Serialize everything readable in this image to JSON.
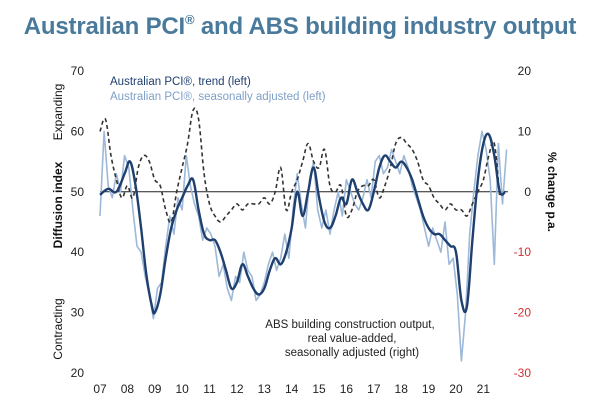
{
  "title": "Australian PCI",
  "title_mark": "®",
  "title_rest": " and ABS building industry output",
  "colors": {
    "title": "#4a7a9b",
    "trend": "#1f3f6e",
    "seasonal": "#9db8d8",
    "abs": "#333333",
    "right_negative": "#d42e2e",
    "zero_line": "#222222"
  },
  "chart_data": {
    "type": "line",
    "title": "Australian PCI® and ABS building industry output",
    "x_label_ticks": [
      "07",
      "08",
      "09",
      "10",
      "11",
      "12",
      "13",
      "14",
      "15",
      "16",
      "17",
      "18",
      "19",
      "20",
      "21"
    ],
    "xlim": [
      2007.0,
      2021.9
    ],
    "left_axis": {
      "label": "Diffusion index",
      "ylim": [
        20,
        70
      ],
      "ticks": [
        20,
        30,
        40,
        50,
        60,
        70
      ],
      "upper_note": "Expanding",
      "lower_note": "Contracting"
    },
    "right_axis": {
      "label": "% change p.a.",
      "ylim": [
        -30,
        20
      ],
      "ticks": [
        -30,
        -20,
        -10,
        0,
        10,
        20
      ]
    },
    "legend": {
      "trend": "Australian PCI®, trend (left)",
      "seasonal": "Australian PCI®, seasonally adjusted (left)"
    },
    "annotation": [
      "ABS building construction output,",
      "real value-added,",
      "seasonally adjusted (right)"
    ],
    "series": [
      {
        "name": "Australian PCI®, trend (left)",
        "axis": "left",
        "x": [
          2007.0,
          2007.3,
          2007.6,
          2007.9,
          2008.1,
          2008.3,
          2008.5,
          2008.7,
          2008.9,
          2009.0,
          2009.2,
          2009.4,
          2009.6,
          2009.8,
          2010.0,
          2010.2,
          2010.4,
          2010.6,
          2010.8,
          2011.0,
          2011.2,
          2011.4,
          2011.6,
          2011.8,
          2012.0,
          2012.2,
          2012.4,
          2012.6,
          2012.8,
          2013.0,
          2013.2,
          2013.4,
          2013.6,
          2013.8,
          2014.0,
          2014.2,
          2014.4,
          2014.6,
          2014.8,
          2015.0,
          2015.2,
          2015.4,
          2015.6,
          2015.8,
          2016.0,
          2016.2,
          2016.4,
          2016.6,
          2016.8,
          2017.0,
          2017.2,
          2017.4,
          2017.6,
          2017.8,
          2018.0,
          2018.2,
          2018.4,
          2018.6,
          2018.8,
          2019.0,
          2019.2,
          2019.4,
          2019.6,
          2019.8,
          2020.0,
          2020.2,
          2020.4,
          2020.6,
          2020.8,
          2021.0,
          2021.2,
          2021.4,
          2021.6,
          2021.8
        ],
        "values": [
          49.5,
          50.5,
          50,
          53,
          55,
          51,
          44,
          36,
          31,
          30,
          33,
          39,
          44,
          47,
          49,
          51,
          52,
          47,
          43,
          42,
          42,
          40,
          37,
          34,
          35,
          38,
          36,
          34,
          33,
          34,
          37,
          39,
          38,
          40,
          44,
          50,
          46,
          50,
          54,
          49,
          45,
          44,
          46,
          49,
          48,
          52,
          50,
          48,
          47,
          50,
          54,
          56,
          55,
          54,
          55,
          54,
          52,
          49,
          46,
          44,
          43,
          43,
          42,
          41,
          40,
          32,
          31,
          42,
          52,
          58,
          59.5,
          56,
          50,
          50
        ]
      },
      {
        "name": "Australian PCI®, seasonally adjusted (left)",
        "axis": "left",
        "x": [
          2007.0,
          2007.15,
          2007.3,
          2007.45,
          2007.6,
          2007.75,
          2007.9,
          2008.05,
          2008.2,
          2008.35,
          2008.5,
          2008.65,
          2008.8,
          2008.95,
          2009.1,
          2009.25,
          2009.4,
          2009.55,
          2009.7,
          2009.85,
          2010.0,
          2010.15,
          2010.3,
          2010.45,
          2010.6,
          2010.75,
          2010.9,
          2011.05,
          2011.2,
          2011.35,
          2011.5,
          2011.65,
          2011.8,
          2011.95,
          2012.1,
          2012.25,
          2012.4,
          2012.55,
          2012.7,
          2012.85,
          2013.0,
          2013.15,
          2013.3,
          2013.45,
          2013.6,
          2013.75,
          2013.9,
          2014.05,
          2014.2,
          2014.35,
          2014.5,
          2014.65,
          2014.8,
          2014.95,
          2015.1,
          2015.25,
          2015.4,
          2015.55,
          2015.7,
          2015.85,
          2016.0,
          2016.15,
          2016.3,
          2016.45,
          2016.6,
          2016.75,
          2016.9,
          2017.05,
          2017.2,
          2017.35,
          2017.5,
          2017.65,
          2017.8,
          2017.95,
          2018.1,
          2018.25,
          2018.4,
          2018.55,
          2018.7,
          2018.85,
          2019.0,
          2019.15,
          2019.3,
          2019.45,
          2019.6,
          2019.75,
          2019.9,
          2020.05,
          2020.2,
          2020.35,
          2020.5,
          2020.65,
          2020.8,
          2020.95,
          2021.1,
          2021.25,
          2021.4,
          2021.55,
          2021.7,
          2021.85
        ],
        "values": [
          46,
          60,
          51,
          49,
          53,
          50,
          56,
          54,
          47,
          41,
          40,
          36,
          33,
          29,
          34,
          35,
          41,
          46,
          43,
          49,
          47,
          56,
          51,
          48,
          46,
          42,
          44,
          43,
          41,
          36,
          38,
          34,
          32,
          36,
          35,
          40,
          37,
          36,
          32,
          33,
          35,
          38,
          40,
          37,
          39,
          43,
          39,
          47,
          53,
          48,
          44,
          52,
          55,
          47,
          44,
          47,
          43,
          47,
          50,
          46,
          52,
          50,
          48,
          47,
          49,
          52,
          49,
          55,
          56,
          53,
          54,
          57,
          55,
          53,
          56,
          54,
          51,
          49,
          47,
          44,
          41,
          44,
          42,
          40,
          45,
          38,
          39,
          33,
          22,
          30,
          43,
          50,
          56,
          60,
          57,
          52,
          38,
          58,
          48,
          57
        ]
      },
      {
        "name": "ABS building construction output, real value-added, seasonally adjusted (right)",
        "axis": "right",
        "x": [
          2007.0,
          2007.2,
          2007.4,
          2007.6,
          2007.8,
          2008.0,
          2008.2,
          2008.4,
          2008.6,
          2008.8,
          2009.0,
          2009.2,
          2009.4,
          2009.6,
          2009.8,
          2010.0,
          2010.2,
          2010.4,
          2010.6,
          2010.8,
          2011.0,
          2011.2,
          2011.4,
          2011.6,
          2011.8,
          2012.0,
          2012.2,
          2012.4,
          2012.6,
          2012.8,
          2013.0,
          2013.2,
          2013.4,
          2013.6,
          2013.8,
          2014.0,
          2014.2,
          2014.4,
          2014.6,
          2014.8,
          2015.0,
          2015.2,
          2015.4,
          2015.6,
          2015.8,
          2016.0,
          2016.2,
          2016.4,
          2016.6,
          2016.8,
          2017.0,
          2017.2,
          2017.4,
          2017.6,
          2017.8,
          2018.0,
          2018.2,
          2018.4,
          2018.6,
          2018.8,
          2019.0,
          2019.2,
          2019.4,
          2019.6,
          2019.8,
          2020.0,
          2020.2,
          2020.4,
          2020.6,
          2020.8,
          2021.0,
          2021.2,
          2021.4,
          2021.6
        ],
        "values": [
          10,
          12,
          6,
          2,
          -1,
          1,
          -1,
          4,
          6,
          5,
          2,
          1,
          -3,
          -5,
          0,
          4,
          8,
          13.5,
          12,
          3,
          -2,
          -4,
          -5,
          -4,
          -3,
          -2,
          -3,
          -2,
          -2,
          -2,
          -1,
          -2,
          0,
          4,
          -3,
          0,
          2,
          5,
          8,
          5,
          4,
          7,
          1,
          0,
          1,
          -4,
          -3,
          0,
          1,
          1,
          2,
          -1,
          1,
          4,
          8,
          9,
          8,
          7,
          5,
          2,
          1,
          -1,
          -2,
          -3,
          -2,
          -3,
          -3,
          -4,
          -2,
          0,
          2,
          6,
          8,
          -1
        ]
      }
    ]
  }
}
